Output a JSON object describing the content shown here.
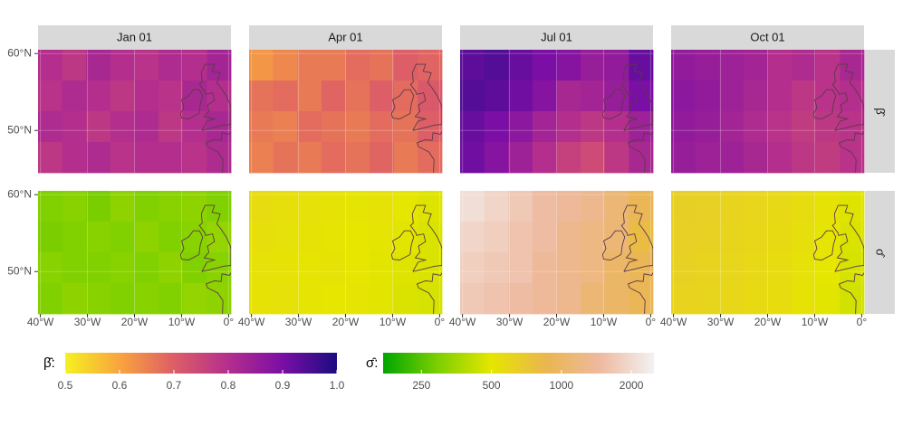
{
  "chart_data": {
    "type": "raster",
    "facets": [
      "Jan 01",
      "Apr 01",
      "Jul 01",
      "Oct 01"
    ],
    "xlim": [
      -40.5,
      0.5
    ],
    "ylim": [
      44.5,
      60.5
    ],
    "xticks": [
      {
        "value": -40,
        "label": "40°W"
      },
      {
        "value": -30,
        "label": "30°W"
      },
      {
        "value": -20,
        "label": "20°W"
      },
      {
        "value": -10,
        "label": "10°W"
      },
      {
        "value": 0,
        "label": "0°"
      }
    ],
    "yticks": [
      {
        "value": 50,
        "label": "50°N"
      },
      {
        "value": 60,
        "label": "60°N"
      }
    ],
    "series": [
      {
        "name": "β̂",
        "legend_title": "β̂:",
        "scale": {
          "log": false,
          "lim": [
            0.5,
            1.0
          ],
          "ticks": [
            0.5,
            0.6,
            0.7,
            0.8,
            0.9,
            {
              "value": 1,
              "label": "1.0"
            }
          ],
          "colors": [
            "#f5f120",
            "#f9a43e",
            "#dd5e66",
            "#b42e8d",
            "#7a0ea5",
            "#1b0c80"
          ]
        },
        "values": [
          [
            [
              0.8,
              0.78,
              0.82,
              0.8,
              0.79,
              0.81,
              0.8,
              0.83
            ],
            [
              0.79,
              0.81,
              0.8,
              0.78,
              0.8,
              0.79,
              0.82,
              0.8
            ],
            [
              0.81,
              0.8,
              0.78,
              0.8,
              0.81,
              0.78,
              0.8,
              0.82
            ],
            [
              0.78,
              0.8,
              0.81,
              0.79,
              0.8,
              0.8,
              0.79,
              0.81
            ]
          ],
          [
            [
              0.62,
              0.64,
              0.66,
              0.66,
              0.68,
              0.67,
              0.7,
              0.69
            ],
            [
              0.67,
              0.68,
              0.66,
              0.69,
              0.67,
              0.7,
              0.68,
              0.71
            ],
            [
              0.66,
              0.65,
              0.68,
              0.67,
              0.66,
              0.68,
              0.67,
              0.7
            ],
            [
              0.65,
              0.67,
              0.66,
              0.68,
              0.67,
              0.69,
              0.66,
              0.68
            ]
          ],
          [
            [
              0.93,
              0.94,
              0.92,
              0.9,
              0.88,
              0.85,
              0.86,
              0.92
            ],
            [
              0.94,
              0.93,
              0.91,
              0.88,
              0.82,
              0.83,
              0.85,
              0.9
            ],
            [
              0.92,
              0.9,
              0.87,
              0.83,
              0.8,
              0.78,
              0.8,
              0.84
            ],
            [
              0.91,
              0.88,
              0.84,
              0.8,
              0.76,
              0.74,
              0.78,
              0.82
            ]
          ],
          [
            [
              0.86,
              0.85,
              0.84,
              0.83,
              0.8,
              0.81,
              0.79,
              0.82
            ],
            [
              0.87,
              0.86,
              0.84,
              0.82,
              0.8,
              0.78,
              0.79,
              0.8
            ],
            [
              0.86,
              0.85,
              0.83,
              0.81,
              0.79,
              0.77,
              0.78,
              0.79
            ],
            [
              0.85,
              0.84,
              0.84,
              0.82,
              0.8,
              0.78,
              0.77,
              0.79
            ]
          ]
        ]
      },
      {
        "name": "σ̂",
        "legend_title": "σ̂:",
        "scale": {
          "log": true,
          "lim": [
            171,
            2500
          ],
          "ticks": [
            250,
            500,
            1000,
            2000
          ],
          "colors": [
            "#00a600",
            "#7ccf00",
            "#e6e600",
            "#eab64e",
            "#eeb99f",
            "#f2f2f2"
          ]
        },
        "values": [
          [
            [
              300,
              310,
              290,
              320,
              300,
              310,
              320,
              300
            ],
            [
              290,
              300,
              310,
              300,
              320,
              300,
              310,
              330
            ],
            [
              310,
              300,
              300,
              310,
              300,
              320,
              300,
              310
            ],
            [
              300,
              320,
              310,
              300,
              310,
              300,
              330,
              320
            ]
          ],
          [
            [
              560,
              540,
              530,
              520,
              510,
              520,
              500,
              480
            ],
            [
              540,
              530,
              520,
              510,
              500,
              510,
              490,
              470
            ],
            [
              530,
              520,
              510,
              520,
              500,
              490,
              480,
              470
            ],
            [
              520,
              530,
              510,
              500,
              510,
              490,
              470,
              460
            ]
          ],
          [
            [
              2100,
              1900,
              1700,
              1500,
              1400,
              1300,
              1100,
              900
            ],
            [
              1900,
              1800,
              1600,
              1500,
              1300,
              1200,
              1100,
              800
            ],
            [
              1800,
              1700,
              1600,
              1400,
              1300,
              1200,
              1000,
              900
            ],
            [
              1700,
              1600,
              1500,
              1400,
              1300,
              1100,
              1000,
              900
            ]
          ],
          [
            [
              650,
              640,
              620,
              600,
              580,
              550,
              520,
              480
            ],
            [
              640,
              630,
              610,
              590,
              570,
              540,
              510,
              470
            ],
            [
              630,
              620,
              600,
              580,
              560,
              530,
              500,
              460
            ],
            [
              620,
              610,
              590,
              570,
              550,
              520,
              490,
              450
            ]
          ]
        ]
      }
    ]
  }
}
